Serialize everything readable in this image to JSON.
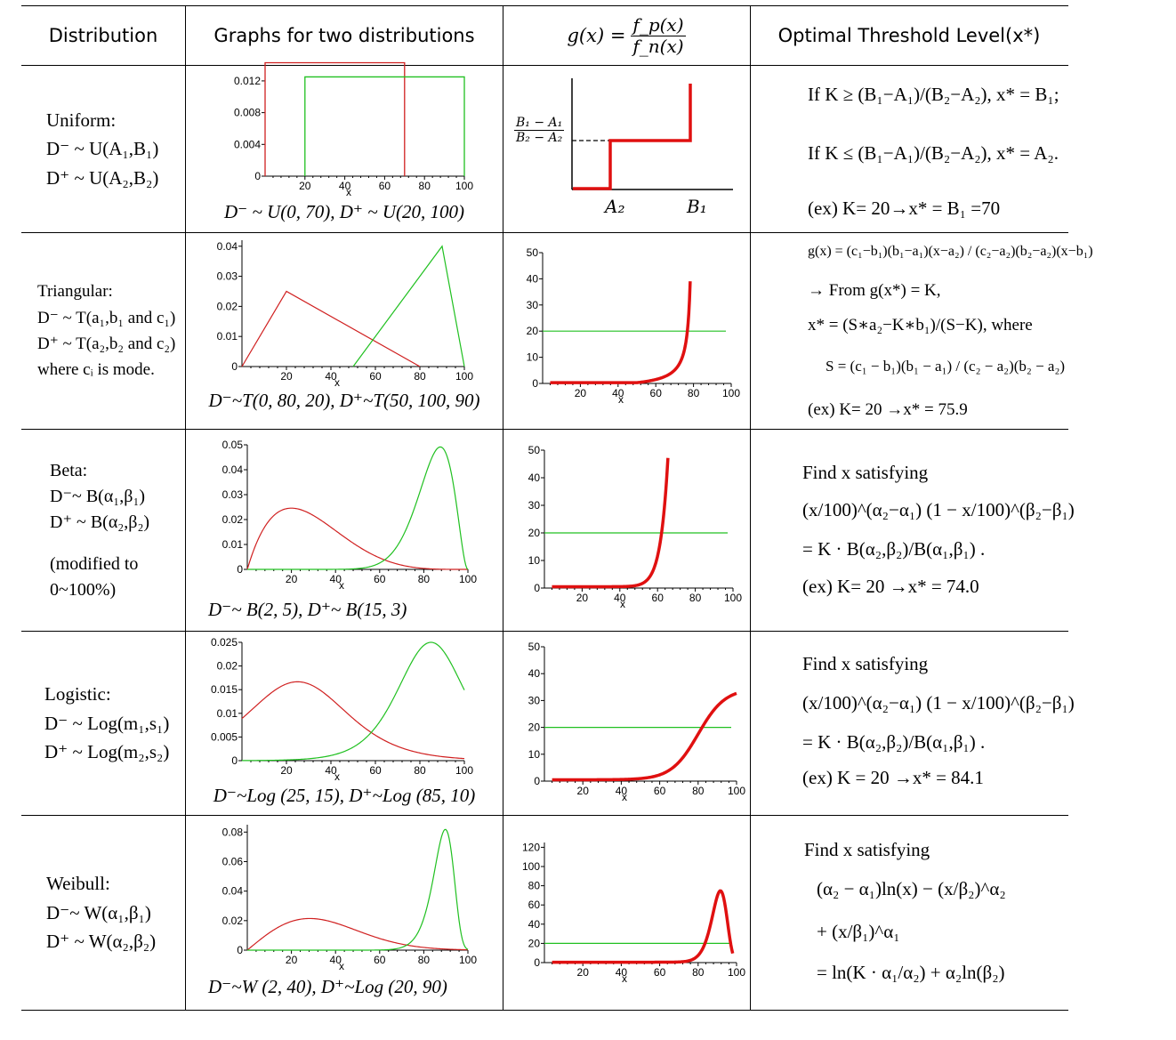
{
  "header": {
    "col1": "Distribution",
    "col2": "Graphs for two distributions",
    "col3": "g(x) = f_p(x) / f_n(x)",
    "col3_lhs": "g(x) =",
    "col3_num": "f_p(x)",
    "col3_den": "f_n(x)",
    "col4": "Optimal Threshold Level(x*)"
  },
  "rows": [
    {
      "name_lines": [
        "Uniform:",
        "D⁻ ~ U(A₁,B₁)",
        "D⁺ ~ U(A₂,B₂)"
      ],
      "caption": "D⁻ ~ U(0, 70), D⁺ ~ U(20, 100)",
      "threshold_lines": [
        "If K ≥ (B₁−A₁)/(B₂−A₂), x* = B₁;",
        "If K ≤ (B₁−A₁)/(B₂−A₂), x* = A₂.",
        "(ex) K= 20→x* = B₁ =70"
      ],
      "g_labels": {
        "ylabel_num": "B₁ − A₁",
        "ylabel_den": "B₂ − A₂",
        "xa": "A₂",
        "xb": "B₁"
      }
    },
    {
      "name_lines": [
        "Triangular:",
        "D⁻ ~ T(a₁,b₁ and c₁)",
        "D⁺ ~ T(a₂,b₂ and c₂)",
        "where cᵢ is mode."
      ],
      "caption": "D⁻~T(0, 80, 20), D⁺~T(50, 100, 90)",
      "threshold_lines": [
        "g(x) = (c₁−b₁)(b₁−a₁)(x−a₂) / (c₂−a₂)(b₂−a₂)(x−b₁)",
        "→ From g(x*) = K,",
        "x* = (S∗a₂−K∗b₁)/(S−K), where",
        "S = (c₁ − b₁)(b₁ − a₁) / (c₂ − a₂)(b₂ − a₂)",
        "(ex) K= 20 →x* = 75.9"
      ]
    },
    {
      "name_lines": [
        "Beta:",
        "D⁻~ B(α₁,β₁)",
        "D⁺ ~ B(α₂,β₂)",
        "",
        "(modified to",
        "0~100%)"
      ],
      "caption": "D⁻~ B(2, 5), D⁺~ B(15, 3)",
      "threshold_lines": [
        "Find x satisfying",
        "(x/100)^(α₂−α₁) (1 − x/100)^(β₂−β₁)",
        "= K · B(α₂,β₂)/B(α₁,β₁) .",
        "(ex) K= 20 →x* = 74.0"
      ]
    },
    {
      "name_lines": [
        "Logistic:",
        "D⁻ ~ Log(m₁,s₁)",
        "D⁺ ~ Log(m₂,s₂)"
      ],
      "caption": "D⁻~Log (25, 15), D⁺~Log (85, 10)",
      "threshold_lines": [
        "Find x satisfying",
        "(x/100)^(α₂−α₁) (1 − x/100)^(β₂−β₁)",
        "= K · B(α₂,β₂)/B(α₁,β₁) .",
        "(ex) K = 20 →x* = 84.1"
      ]
    },
    {
      "name_lines": [
        "Weibull:",
        "D⁻~ W(α₁,β₁)",
        "D⁺ ~ W(α₂,β₂)"
      ],
      "caption": "D⁻~W (2, 40), D⁺~Log (20, 90)",
      "threshold_lines": [
        "Find x satisfying",
        "(α₂ − α₁)ln(x) − (x/β₂)^α₂",
        "+ (x/β₁)^α₁",
        "= ln(K · α₁/α₂) + α₂ln(β₂)"
      ]
    }
  ],
  "chart_data": [
    {
      "type": "line",
      "panel": "uniform-dist",
      "x_ticks": [
        20,
        40,
        60,
        80,
        100
      ],
      "y_ticks": [
        "0",
        "0.004",
        "0.008",
        "0.012"
      ],
      "xlabel": "x",
      "xlim": [
        0,
        100
      ],
      "ylim": [
        0,
        0.013
      ],
      "series": [
        {
          "color": "#d02020",
          "x": [
            0,
            0,
            70,
            70
          ],
          "y": [
            0,
            0.01429,
            0.01429,
            0
          ]
        },
        {
          "color": "#20c020",
          "x": [
            20,
            20,
            100,
            100
          ],
          "y": [
            0,
            0.0125,
            0.0125,
            0
          ]
        }
      ]
    },
    {
      "type": "line",
      "panel": "uniform-g",
      "series": [
        {
          "color": "#e01010",
          "description": "step function"
        }
      ]
    },
    {
      "type": "line",
      "panel": "triangular-dist",
      "x_ticks": [
        20,
        40,
        60,
        80,
        100
      ],
      "y_ticks": [
        "0",
        "0.01",
        "0.02",
        "0.03",
        "0.04"
      ],
      "xlabel": "x",
      "xlim": [
        0,
        100
      ],
      "ylim": [
        0,
        0.042
      ],
      "series": [
        {
          "color": "#d02020",
          "x": [
            0,
            20,
            80
          ],
          "y": [
            0,
            0.025,
            0
          ]
        },
        {
          "color": "#20c020",
          "x": [
            50,
            90,
            100
          ],
          "y": [
            0,
            0.04,
            0
          ]
        }
      ]
    },
    {
      "type": "line",
      "panel": "triangular-g",
      "x_ticks": [
        20,
        40,
        60,
        80,
        100
      ],
      "y_ticks": [
        "0",
        "10",
        "20",
        "30",
        "40",
        "50"
      ],
      "xlabel": "x",
      "xlim": [
        0,
        100
      ],
      "ylim": [
        0,
        50
      ],
      "hline": 20
    },
    {
      "type": "line",
      "panel": "beta-dist",
      "x_ticks": [
        20,
        40,
        60,
        80,
        100
      ],
      "y_ticks": [
        "0",
        "0.01",
        "0.02",
        "0.03",
        "0.04",
        "0.05"
      ],
      "xlabel": "x",
      "xlim": [
        0,
        100
      ],
      "ylim": [
        0,
        0.05
      ]
    },
    {
      "type": "line",
      "panel": "beta-g",
      "x_ticks": [
        20,
        40,
        60,
        80,
        100
      ],
      "y_ticks": [
        "0",
        "10",
        "20",
        "30",
        "40",
        "50"
      ],
      "xlabel": "x",
      "xlim": [
        0,
        100
      ],
      "ylim": [
        0,
        50
      ],
      "hline": 20
    },
    {
      "type": "line",
      "panel": "logistic-dist",
      "x_ticks": [
        20,
        40,
        60,
        80,
        100
      ],
      "y_ticks": [
        "0",
        "0.005",
        "0.01",
        "0.015",
        "0.02",
        "0.025"
      ],
      "xlabel": "x",
      "xlim": [
        0,
        100
      ],
      "ylim": [
        0,
        0.025
      ]
    },
    {
      "type": "line",
      "panel": "logistic-g",
      "x_ticks": [
        20,
        40,
        60,
        80,
        100
      ],
      "y_ticks": [
        "0",
        "10",
        "20",
        "30",
        "40",
        "50"
      ],
      "xlabel": "x",
      "xlim": [
        0,
        100
      ],
      "ylim": [
        0,
        50
      ],
      "hline": 20
    },
    {
      "type": "line",
      "panel": "weibull-dist",
      "x_ticks": [
        20,
        40,
        60,
        80,
        100
      ],
      "y_ticks": [
        "0",
        "0.02",
        "0.04",
        "0.06",
        "0.08"
      ],
      "xlabel": "x",
      "xlim": [
        0,
        100
      ],
      "ylim": [
        0,
        0.085
      ]
    },
    {
      "type": "line",
      "panel": "weibull-g",
      "x_ticks": [
        20,
        40,
        60,
        80,
        100
      ],
      "y_ticks": [
        "0",
        "20",
        "40",
        "60",
        "80",
        "100",
        "120"
      ],
      "xlabel": "x",
      "xlim": [
        0,
        100
      ],
      "ylim": [
        0,
        125
      ],
      "hline": 20
    }
  ]
}
